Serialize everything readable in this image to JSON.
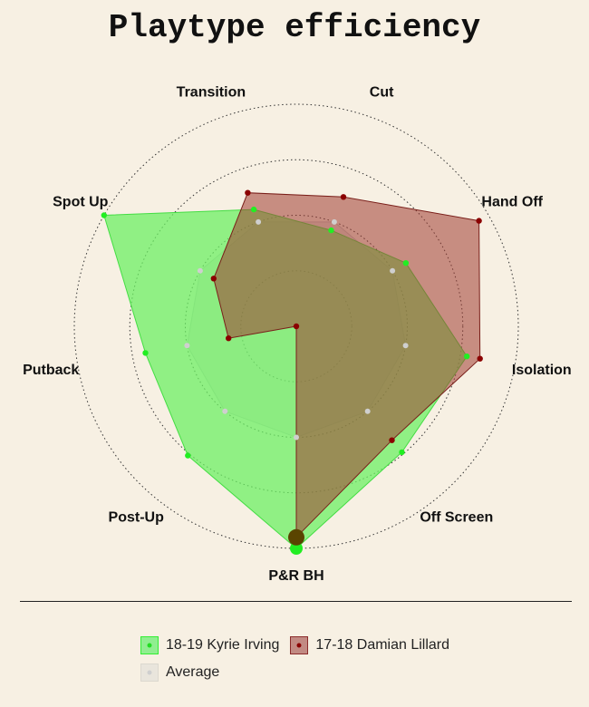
{
  "chart_data": {
    "type": "radar",
    "title": "Playtype efficiency",
    "axes": [
      "P&R BH",
      "Off Screen",
      "Isolation",
      "Hand Off",
      "Cut",
      "Transition",
      "Spot Up",
      "Putback",
      "Post-Up"
    ],
    "grid": true,
    "legend_position": "bottom",
    "series": [
      {
        "name": "18-19 Kyrie Irving",
        "color": "#33ee33",
        "fill": "#7ff07a",
        "values": [
          1.0,
          0.74,
          0.78,
          0.57,
          0.46,
          0.56,
          1.0,
          0.69,
          0.76
        ]
      },
      {
        "name": "17-18 Damian Lillard",
        "color": "#8b0000",
        "fill": "#b86a62",
        "values": [
          0.95,
          0.67,
          0.84,
          0.95,
          0.62,
          0.64,
          0.43,
          0.31,
          0.0
        ]
      },
      {
        "name": "Average",
        "color": "#c8c8c8",
        "fill": "#d9d9d9",
        "values": [
          0.5,
          0.5,
          0.5,
          0.5,
          0.5,
          0.5,
          0.5,
          0.5,
          0.5
        ]
      }
    ]
  }
}
